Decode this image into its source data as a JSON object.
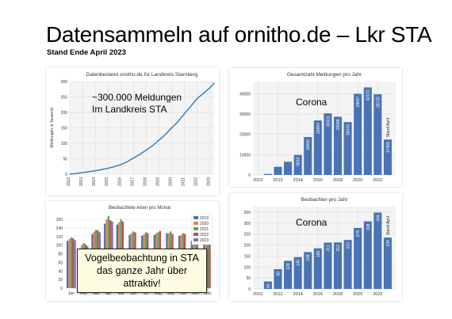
{
  "header": {
    "title": "Datensammeln auf ornitho.de – Lkr STA",
    "subtitle": "Stand Ende April 2023"
  },
  "annotations": {
    "panel1_note_line1": "~300.000 Meldungen",
    "panel1_note_line2": "Im Landkreis STA",
    "corona_label": "Corona",
    "callout_line1": "Vogelbeobachtung in STA",
    "callout_line2": "das ganze Jahr über attraktiv!"
  },
  "colors": {
    "line": "#2e7ab5",
    "bar": "#4a73b3",
    "years": [
      "#4c72b0",
      "#dd8452",
      "#55a868",
      "#c44e52",
      "#8172b3"
    ]
  },
  "chart_data": [
    {
      "type": "line",
      "title": "Datenbestand ornitho.de für Landkreis Starnberg",
      "xlabel": "",
      "ylabel": "Meldungen in Tausend",
      "x_ticks": [
        "2012",
        "2013",
        "2014",
        "2015",
        "2016",
        "2017",
        "2018",
        "2019",
        "2020",
        "2021",
        "2022",
        "2023"
      ],
      "y_ticks": [
        "0",
        "50",
        "100",
        "150",
        "200",
        "250",
        "300"
      ],
      "xlim": [
        2012,
        2023.33
      ],
      "ylim": [
        0,
        300
      ],
      "grid": true,
      "x": [
        2012.0,
        2012.5,
        2013.0,
        2013.5,
        2014.0,
        2014.5,
        2015.0,
        2015.5,
        2016.0,
        2016.5,
        2017.0,
        2017.5,
        2018.0,
        2018.5,
        2019.0,
        2019.5,
        2020.0,
        2020.5,
        2021.0,
        2021.5,
        2022.0,
        2022.5,
        2023.0,
        2023.33
      ],
      "values": [
        0,
        2,
        5,
        8,
        11,
        15,
        19,
        24,
        31,
        40,
        52,
        64,
        78,
        92,
        110,
        128,
        150,
        170,
        196,
        220,
        245,
        262,
        280,
        295
      ]
    },
    {
      "type": "bar",
      "title": "Gesamtzahl Meldungen pro Jahr",
      "x_ticks": [
        "2010",
        "2012",
        "2014",
        "2016",
        "2018",
        "2020",
        "2022"
      ],
      "y_ticks": [
        "0",
        "10000",
        "20000",
        "30000",
        "40000"
      ],
      "ylim": [
        0,
        46000
      ],
      "grid": true,
      "categories": [
        "2011",
        "2012",
        "2013",
        "2014",
        "2015",
        "2016",
        "2017",
        "2018",
        "2019",
        "2020",
        "2021",
        "2022",
        "2023"
      ],
      "values": [
        500,
        4000,
        6500,
        9833,
        18666,
        26854,
        30331,
        28688,
        26043,
        39947,
        43101,
        39725,
        17469
      ],
      "data_labels": [
        "",
        "",
        "",
        "9833",
        "18666",
        "26854",
        "30331",
        "28688",
        "26043",
        "39947",
        "43101",
        "39725",
        "17469"
      ],
      "extra_label": "Stand April"
    },
    {
      "type": "bar",
      "title": "Beobachtete Arten pro Monat",
      "categories": [
        "Jan",
        "Feb",
        "Mär",
        "Apr",
        "Mai",
        "Jun",
        "Jul",
        "Aug",
        "Sep",
        "Okt",
        "Nov",
        "Dez"
      ],
      "y_ticks": [
        "0",
        "20",
        "40",
        "60",
        "80",
        "100",
        "120",
        "140",
        "160"
      ],
      "ylim": [
        0,
        175
      ],
      "grid": true,
      "legend_position": "top-right",
      "series": [
        {
          "name": "2019",
          "values": [
            110,
            92,
            126,
            150,
            148,
            124,
            122,
            124,
            128,
            122,
            110,
            105
          ]
        },
        {
          "name": "2020",
          "values": [
            114,
            100,
            132,
            160,
            153,
            128,
            125,
            128,
            128,
            124,
            115,
            108
          ]
        },
        {
          "name": "2021",
          "values": [
            118,
            105,
            136,
            168,
            160,
            132,
            130,
            130,
            132,
            128,
            116,
            110
          ]
        },
        {
          "name": "2022",
          "values": [
            116,
            102,
            134,
            158,
            155,
            130,
            128,
            133,
            126,
            126,
            118,
            106
          ]
        },
        {
          "name": "2023",
          "values": [
            112,
            98,
            130,
            155,
            0,
            0,
            0,
            0,
            0,
            0,
            0,
            0
          ]
        }
      ]
    },
    {
      "type": "bar",
      "title": "Beobachter pro Jahr",
      "x_ticks": [
        "2010",
        "2012",
        "2014",
        "2016",
        "2018",
        "2020",
        "2022"
      ],
      "y_ticks": [
        "0",
        "50",
        "100",
        "150",
        "200",
        "250",
        "300",
        "350"
      ],
      "ylim": [
        0,
        375
      ],
      "grid": true,
      "categories": [
        "2011",
        "2012",
        "2013",
        "2014",
        "2015",
        "2016",
        "2017",
        "2018",
        "2019",
        "2020",
        "2021",
        "2022",
        "2023"
      ],
      "values": [
        34,
        90,
        128,
        145,
        168,
        185,
        211,
        212,
        223,
        278,
        308,
        348,
        234
      ],
      "data_labels": [
        "34",
        "90",
        "128",
        "145",
        "168",
        "185",
        "211",
        "212",
        "223",
        "278",
        "308",
        "348",
        "234"
      ],
      "extra_label": "Stand April"
    }
  ]
}
